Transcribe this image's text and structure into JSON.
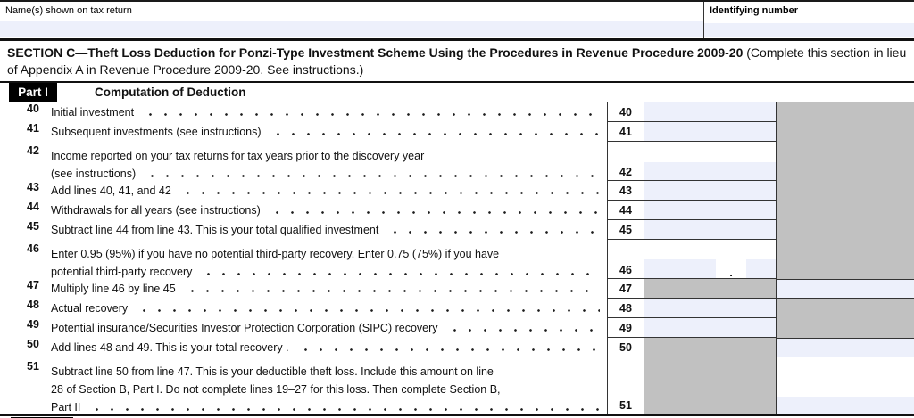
{
  "colors": {
    "field_fill": "#edf0fb",
    "shaded": "#c1c1c1"
  },
  "header": {
    "name_label": "Name(s) shown on tax return",
    "identifying_label": "Identifying number"
  },
  "section_c": {
    "title_bold": "SECTION C—Theft Loss Deduction for Ponzi-Type Investment Scheme Using the Procedures in Revenue Procedure 2009-20 ",
    "title_note": "(Complete this section in lieu of Appendix A in Revenue Procedure 2009-20. See instructions.)"
  },
  "part_1": {
    "label": "Part I",
    "title": "Computation of Deduction"
  },
  "table": {
    "decimal_point": ".",
    "rows": [
      {
        "num": "40",
        "lines": [
          "Initial investment"
        ],
        "entry": "field",
        "right": "shaded"
      },
      {
        "num": "41",
        "lines": [
          "Subsequent investments (see instructions)"
        ],
        "entry": "field",
        "right": "shaded"
      },
      {
        "num": "42",
        "lines": [
          "Income reported on your tax returns for tax years prior to the discovery year",
          "(see instructions)"
        ],
        "entry": "white-field",
        "right": "shaded"
      },
      {
        "num": "43",
        "lines": [
          "Add lines 40, 41, and 42"
        ],
        "entry": "field",
        "right": "shaded"
      },
      {
        "num": "44",
        "lines": [
          "Withdrawals for all years (see instructions)"
        ],
        "entry": "field",
        "right": "shaded"
      },
      {
        "num": "45",
        "lines": [
          "Subtract line 44 from line 43. This is your total qualified investment"
        ],
        "entry": "field",
        "right": "shaded"
      },
      {
        "num": "46",
        "lines": [
          "Enter 0.95 (95%) if you have no potential third-party recovery. Enter 0.75 (75%) if you have",
          "potential third-party recovery"
        ],
        "entry": "decimal",
        "right": "shaded"
      },
      {
        "num": "47",
        "lines": [
          "Multiply line 46 by line 45"
        ],
        "entry": "shaded",
        "right": "field"
      },
      {
        "num": "48",
        "lines": [
          "Actual recovery"
        ],
        "entry": "field",
        "right": "shaded"
      },
      {
        "num": "49",
        "lines": [
          "Potential insurance/Securities Investor Protection Corporation (SIPC) recovery"
        ],
        "entry": "field",
        "right": "shaded"
      },
      {
        "num": "50",
        "lines": [
          "Add lines 48 and 49. This is your total recovery ."
        ],
        "entry": "shaded",
        "right": "field"
      },
      {
        "num": "51",
        "lines": [
          "Subtract line 50 from line 47. This is your deductible theft loss. Include this amount on line",
          "28 of Section B, Part I. Do not complete lines 19–27 for this loss. Then complete Section B,",
          "Part II"
        ],
        "entry": "shaded",
        "right": "white-field"
      }
    ]
  }
}
